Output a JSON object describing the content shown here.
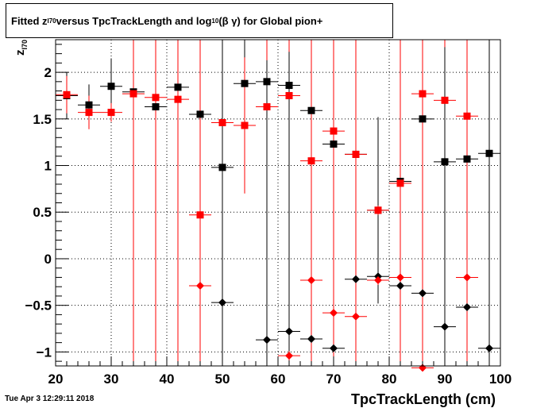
{
  "title": {
    "pre": "Fitted  z",
    "sub1": "I70",
    "mid": "  versus TpcTrackLength and log",
    "sub2": "10",
    "post": " (β γ) for Global pion+"
  },
  "datestamp": "Tue Apr  3 12:29:11 2018",
  "chart_data": {
    "type": "scatter",
    "xlabel": "TpcTrackLength (cm)",
    "ylabel": {
      "main": "z",
      "sub": "I70"
    },
    "xlim": [
      20,
      100
    ],
    "ylim": [
      -1.15,
      2.35
    ],
    "xticks": [
      "20",
      "30",
      "40",
      "50",
      "60",
      "70",
      "80",
      "90",
      "100"
    ],
    "yticks": [
      "−1",
      "−0.5",
      "0",
      "0.5",
      "1",
      "1.5",
      "2"
    ],
    "ytick_values": [
      -1,
      -0.5,
      0,
      0.5,
      1,
      1.5,
      2
    ],
    "grid": true,
    "x_halfwidth": 2,
    "series": [
      {
        "marker": "square",
        "color": "#000000",
        "points": [
          {
            "x": 22,
            "y": 1.75,
            "err": 0.25
          },
          {
            "x": 26,
            "y": 1.65,
            "err": 0.22
          },
          {
            "x": 30,
            "y": 1.85,
            "err": 0.3
          },
          {
            "x": 34,
            "y": 1.79,
            "err": 1.5
          },
          {
            "x": 38,
            "y": 1.63,
            "err": 0.3
          },
          {
            "x": 42,
            "y": 1.84,
            "err": 1.5
          },
          {
            "x": 46,
            "y": 1.55,
            "err": 2.0
          },
          {
            "x": 50,
            "y": 0.98,
            "err": 2.5
          },
          {
            "x": 54,
            "y": 1.88,
            "err": 1.0
          },
          {
            "x": 58,
            "y": 1.9,
            "err": 3.0
          },
          {
            "x": 62,
            "y": 1.86,
            "err": 0.3
          },
          {
            "x": 66,
            "y": 1.59,
            "err": 3.0
          },
          {
            "x": 70,
            "y": 1.23,
            "err": 0.1
          },
          {
            "x": 74,
            "y": 1.12,
            "err": 0.05
          },
          {
            "x": 78,
            "y": 0.52,
            "err": 1.0
          },
          {
            "x": 82,
            "y": 0.83,
            "err": 0.05
          },
          {
            "x": 86,
            "y": 1.5,
            "err": 3.0
          },
          {
            "x": 90,
            "y": 1.04,
            "err": 0.05
          },
          {
            "x": 94,
            "y": 1.07,
            "err": 0.05
          },
          {
            "x": 98,
            "y": 1.13,
            "err": 3.0
          }
        ]
      },
      {
        "marker": "square",
        "color": "#ff0000",
        "points": [
          {
            "x": 22,
            "y": 1.76,
            "err": 0.2
          },
          {
            "x": 26,
            "y": 1.57,
            "err": 0.18
          },
          {
            "x": 30,
            "y": 1.57,
            "err": 0.1
          },
          {
            "x": 34,
            "y": 1.77,
            "err": 3.0
          },
          {
            "x": 38,
            "y": 1.73,
            "err": 3.0
          },
          {
            "x": 42,
            "y": 1.71,
            "err": 3.0
          },
          {
            "x": 46,
            "y": 0.47,
            "err": 3.0
          },
          {
            "x": 50,
            "y": 1.46,
            "err": 3.0
          },
          {
            "x": 54,
            "y": 1.43,
            "err": 0.73
          },
          {
            "x": 58,
            "y": 1.63,
            "err": 3.0
          },
          {
            "x": 62,
            "y": 1.75,
            "err": 3.0
          },
          {
            "x": 66,
            "y": 1.05,
            "err": 3.0
          },
          {
            "x": 70,
            "y": 1.37,
            "err": 3.0
          },
          {
            "x": 74,
            "y": 1.12,
            "err": 3.0
          },
          {
            "x": 78,
            "y": 0.52,
            "err": 0.05
          },
          {
            "x": 82,
            "y": 0.81,
            "err": 3.0
          },
          {
            "x": 86,
            "y": 1.77,
            "err": 3.0
          },
          {
            "x": 90,
            "y": 1.7,
            "err": 3.0
          },
          {
            "x": 94,
            "y": 1.53,
            "err": 3.0
          }
        ]
      },
      {
        "marker": "diamond",
        "color": "#000000",
        "points": [
          {
            "x": 50,
            "y": -0.47,
            "err": 3.0
          },
          {
            "x": 58,
            "y": -0.87,
            "err": 3.0
          },
          {
            "x": 62,
            "y": -0.78,
            "err": 3.0
          },
          {
            "x": 66,
            "y": -0.86,
            "err": 3.0
          },
          {
            "x": 70,
            "y": -0.96,
            "err": 0.05
          },
          {
            "x": 74,
            "y": -0.22,
            "err": 0.05
          },
          {
            "x": 78,
            "y": -0.19,
            "err": 0.05
          },
          {
            "x": 82,
            "y": -0.29,
            "err": 0.05
          },
          {
            "x": 86,
            "y": -0.37,
            "err": 0.05
          },
          {
            "x": 90,
            "y": -0.73,
            "err": 3.0
          },
          {
            "x": 94,
            "y": -0.52,
            "err": 0.05
          },
          {
            "x": 98,
            "y": -0.96,
            "err": 3.0
          }
        ]
      },
      {
        "marker": "diamond",
        "color": "#ff0000",
        "points": [
          {
            "x": 46,
            "y": -0.29,
            "err": 0.23
          },
          {
            "x": 62,
            "y": -1.04,
            "err": 0.05
          },
          {
            "x": 66,
            "y": -0.23,
            "err": 3.0
          },
          {
            "x": 70,
            "y": -0.58,
            "err": 3.0
          },
          {
            "x": 74,
            "y": -0.62,
            "err": 0.7
          },
          {
            "x": 78,
            "y": -0.23,
            "err": 0.05
          },
          {
            "x": 82,
            "y": -0.2,
            "err": 3.0
          },
          {
            "x": 86,
            "y": -1.17,
            "err": 3.0
          },
          {
            "x": 94,
            "y": -0.2,
            "err": 3.0
          }
        ]
      }
    ]
  }
}
